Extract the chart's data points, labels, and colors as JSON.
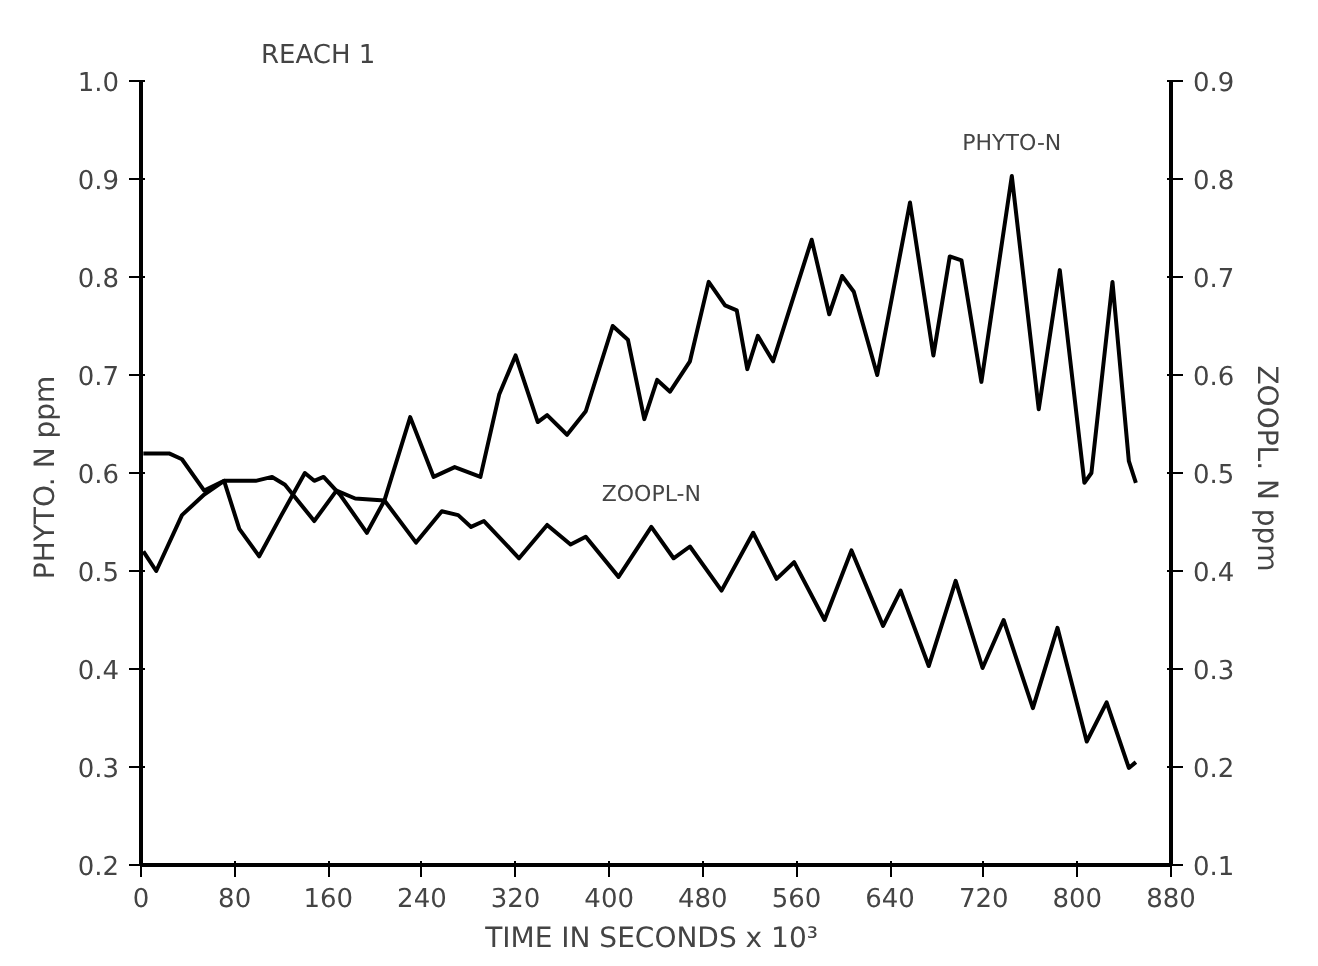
{
  "chart_data": {
    "type": "line",
    "title": "REACH  1",
    "xlabel": "TIME IN SECONDS  x 10³",
    "ylabel": "PHYTO. N  ppm",
    "y2label": "ZOOPL. N  ppm",
    "xlim": [
      0,
      880
    ],
    "xticks": [
      0,
      80,
      160,
      240,
      320,
      400,
      480,
      560,
      640,
      720,
      800,
      880
    ],
    "ylim": [
      0.2,
      1.0
    ],
    "yticks": [
      {
        "value": 0.2,
        "label": "0.2"
      },
      {
        "value": 0.3,
        "label": "0.3"
      },
      {
        "value": 0.4,
        "label": "0.4"
      },
      {
        "value": 0.5,
        "label": "0.5"
      },
      {
        "value": 0.6,
        "label": "0.6"
      },
      {
        "value": 0.7,
        "label": "0.7"
      },
      {
        "value": 0.8,
        "label": "0.8"
      },
      {
        "value": 0.9,
        "label": "0.9"
      },
      {
        "value": 1.0,
        "label": "1.0"
      }
    ],
    "y2lim": [
      0.1,
      0.9
    ],
    "y2ticks": [
      0.1,
      0.2,
      0.3,
      0.4,
      0.5,
      0.6,
      0.7,
      0.8,
      0.9
    ],
    "grid": false,
    "line_style": "solid",
    "series": [
      {
        "name": "PHYTO-N",
        "color": "#000000",
        "x": [
          2,
          13,
          35,
          54,
          71,
          84,
          101,
          120,
          140,
          148,
          156,
          170,
          193,
          208,
          230,
          250,
          268,
          290,
          306,
          320,
          339,
          347,
          364,
          380,
          403,
          416,
          430,
          441,
          452,
          469,
          485,
          499,
          509,
          518,
          527,
          540,
          573,
          588,
          599,
          609,
          629,
          657,
          677,
          691,
          701,
          718,
          744,
          767,
          785,
          806,
          812,
          830,
          844,
          850
        ],
        "values": [
          0.52,
          0.5,
          0.557,
          0.578,
          0.592,
          0.543,
          0.515,
          0.557,
          0.6,
          0.592,
          0.596,
          0.578,
          0.539,
          0.572,
          0.657,
          0.596,
          0.606,
          0.596,
          0.68,
          0.72,
          0.652,
          0.659,
          0.639,
          0.663,
          0.75,
          0.736,
          0.655,
          0.695,
          0.683,
          0.714,
          0.795,
          0.771,
          0.766,
          0.706,
          0.74,
          0.714,
          0.838,
          0.762,
          0.801,
          0.785,
          0.7,
          0.876,
          0.72,
          0.821,
          0.817,
          0.693,
          0.903,
          0.665,
          0.807,
          0.59,
          0.6,
          0.795,
          0.612,
          0.59
        ]
      },
      {
        "name": "ZOOPL-N",
        "color": "#000000",
        "axis": "y2",
        "x": [
          2,
          24,
          35,
          54,
          71,
          98,
          112,
          123,
          148,
          167,
          183,
          208,
          235,
          257,
          271,
          282,
          293,
          323,
          347,
          367,
          380,
          408,
          436,
          455,
          469,
          496,
          523,
          543,
          558,
          584,
          607,
          634,
          649,
          673,
          696,
          719,
          737,
          762,
          783,
          808,
          825,
          844,
          850
        ],
        "values": [
          0.52,
          0.52,
          0.514,
          0.482,
          0.492,
          0.492,
          0.496,
          0.488,
          0.451,
          0.482,
          0.474,
          0.472,
          0.429,
          0.461,
          0.457,
          0.445,
          0.451,
          0.413,
          0.447,
          0.427,
          0.435,
          0.394,
          0.445,
          0.413,
          0.425,
          0.38,
          0.439,
          0.392,
          0.409,
          0.35,
          0.421,
          0.344,
          0.38,
          0.303,
          0.39,
          0.301,
          0.35,
          0.26,
          0.342,
          0.226,
          0.266,
          0.199,
          0.205
        ]
      }
    ]
  }
}
